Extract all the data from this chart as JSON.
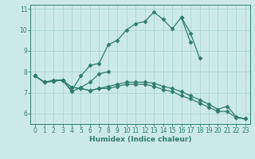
{
  "xlabel": "Humidex (Indice chaleur)",
  "xlim": [
    -0.5,
    23.5
  ],
  "ylim": [
    5.5,
    11.2
  ],
  "yticks": [
    6,
    7,
    8,
    9,
    10,
    11
  ],
  "xticks": [
    0,
    1,
    2,
    3,
    4,
    5,
    6,
    7,
    8,
    9,
    10,
    11,
    12,
    13,
    14,
    15,
    16,
    17,
    18,
    19,
    20,
    21,
    22,
    23
  ],
  "bg_color": "#cce9e9",
  "grid_color": "#aad4d4",
  "line_color": "#2e7d6e",
  "line_width": 0.9,
  "marker": "D",
  "marker_size": 2.5,
  "lines": [
    [
      7.8,
      7.5,
      7.6,
      7.6,
      7.1,
      7.8,
      8.3,
      8.4,
      9.3,
      9.5,
      10.0,
      10.3,
      10.4,
      10.85,
      10.5,
      10.05,
      10.6,
      9.4,
      null,
      null,
      null,
      null,
      null,
      null
    ],
    [
      7.8,
      7.5,
      7.55,
      7.6,
      7.05,
      7.25,
      7.5,
      7.9,
      8.0,
      null,
      null,
      null,
      null,
      null,
      null,
      null,
      10.6,
      9.85,
      8.65,
      null,
      null,
      null,
      null,
      null
    ],
    [
      7.8,
      7.5,
      7.55,
      7.6,
      7.25,
      7.2,
      7.1,
      7.2,
      7.3,
      7.4,
      7.5,
      7.5,
      7.5,
      7.45,
      7.3,
      7.2,
      7.05,
      6.85,
      6.65,
      6.45,
      6.2,
      6.35,
      5.85,
      5.75
    ],
    [
      7.8,
      7.5,
      7.55,
      7.6,
      7.25,
      7.2,
      7.1,
      7.2,
      7.2,
      7.3,
      7.4,
      7.4,
      7.4,
      7.3,
      7.15,
      7.05,
      6.85,
      6.7,
      6.5,
      6.3,
      6.1,
      6.1,
      5.8,
      5.75
    ]
  ]
}
